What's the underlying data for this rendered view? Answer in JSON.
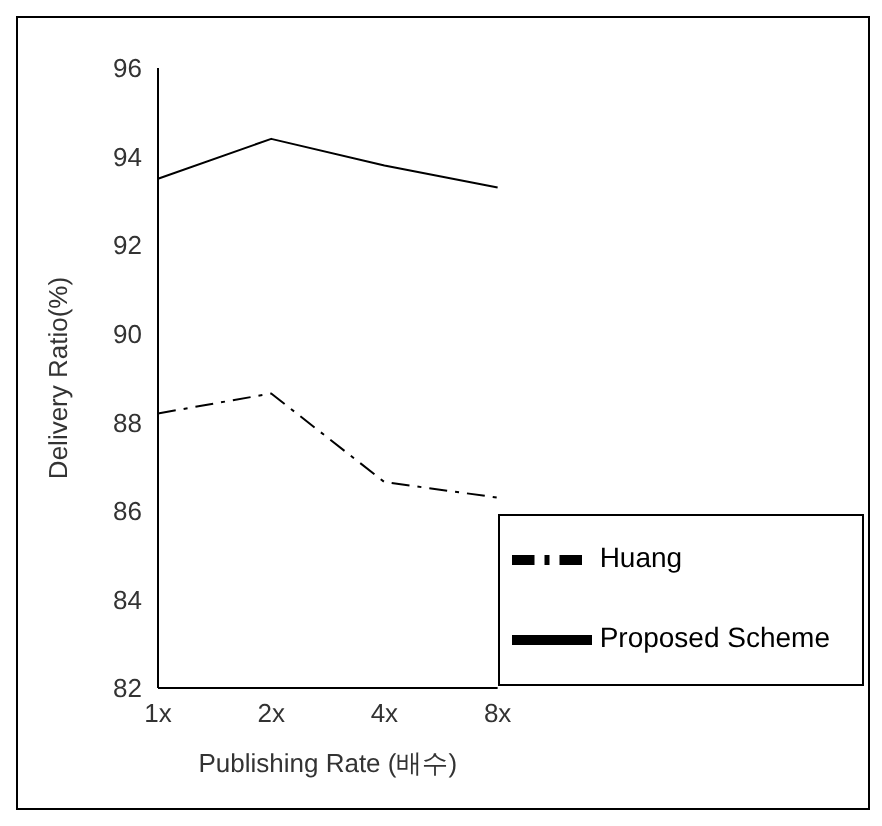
{
  "chart_data": {
    "type": "line",
    "xlabel": "Publishing Rate (배수)",
    "ylabel": "Delivery Ratio(%)",
    "categories": [
      "1x",
      "2x",
      "4x",
      "8x"
    ],
    "series": [
      {
        "name": "Huang",
        "color": "#000000",
        "line_style": "dashdot",
        "values": [
          88.2,
          88.65,
          86.65,
          86.3
        ]
      },
      {
        "name": "Proposed Scheme",
        "color": "#000000",
        "line_style": "solid",
        "values": [
          93.5,
          94.4,
          93.8,
          93.3
        ]
      }
    ],
    "ylim": [
      82,
      96
    ],
    "yticks": [
      82,
      84,
      86,
      88,
      90,
      92,
      94,
      96
    ],
    "grid": false,
    "legend": "bottom right",
    "marker": "none"
  }
}
